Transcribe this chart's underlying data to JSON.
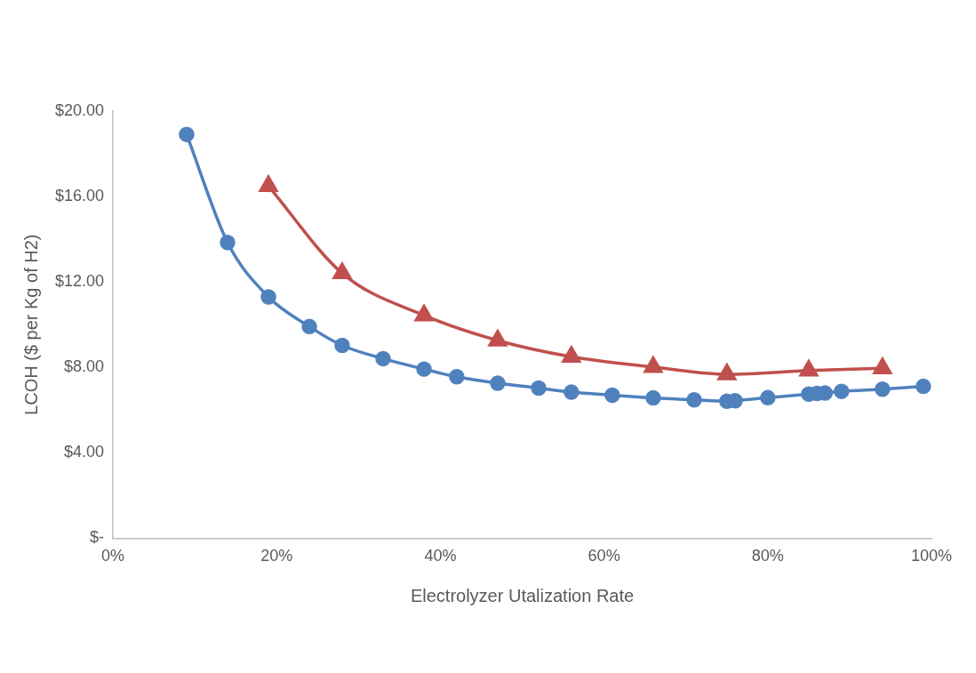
{
  "chart_data": {
    "type": "line",
    "xlabel": "Electrolyzer Utalization Rate",
    "ylabel": "LCOH ($ per Kg of H2)",
    "xlim": [
      0,
      100
    ],
    "xticks": [
      {
        "value": 0,
        "label": "0%"
      },
      {
        "value": 20,
        "label": "20%"
      },
      {
        "value": 40,
        "label": "40%"
      },
      {
        "value": 60,
        "label": "60%"
      },
      {
        "value": 80,
        "label": "80%"
      },
      {
        "value": 100,
        "label": "100%"
      }
    ],
    "ylim": [
      0,
      20
    ],
    "yticks": [
      {
        "value": 0,
        "label": "$-"
      },
      {
        "value": 4,
        "label": "$4.00"
      },
      {
        "value": 8,
        "label": "$8.00"
      },
      {
        "value": 12,
        "label": "$12.00"
      },
      {
        "value": 16,
        "label": "$16.00"
      },
      {
        "value": 20,
        "label": "$20.00"
      }
    ],
    "grid": false,
    "legend": false,
    "series": [
      {
        "color": "#4f81bd",
        "marker": "circle",
        "x": [
          9,
          14,
          19,
          24,
          28,
          33,
          38,
          42,
          47,
          52,
          56,
          61,
          66,
          71,
          75,
          76,
          80,
          85,
          86,
          87,
          89,
          94,
          99
        ],
        "values": [
          18.91,
          13.85,
          11.3,
          9.91,
          9.03,
          8.41,
          7.92,
          7.56,
          7.26,
          7.03,
          6.84,
          6.7,
          6.57,
          6.48,
          6.42,
          6.44,
          6.58,
          6.75,
          6.78,
          6.8,
          6.88,
          6.98,
          7.11
        ]
      },
      {
        "color": "#c0504d",
        "marker": "triangle",
        "x": [
          19,
          28,
          38,
          47,
          56,
          66,
          75,
          85,
          94
        ],
        "values": [
          16.49,
          12.41,
          10.44,
          9.26,
          8.5,
          8.02,
          7.68,
          7.85,
          7.96
        ]
      }
    ]
  }
}
